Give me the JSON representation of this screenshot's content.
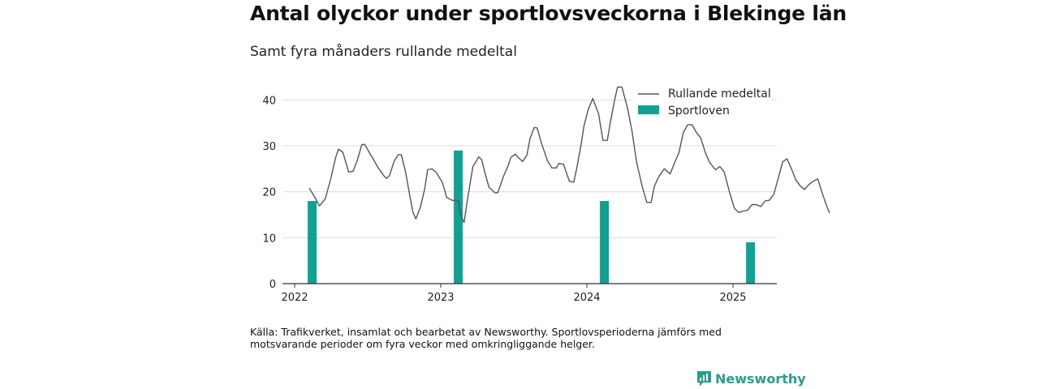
{
  "title": "Antal olyckor under sportlovsveckorna i Blekinge län",
  "subtitle": "Samt fyra månaders rullande medeltal",
  "source": "Källa: Trafikverket, insamlat och bearbetat av Newsworthy. Sportlovsperioderna jämförs med motsvarande perioder om fyra veckor med omkringliggande helger.",
  "brand": {
    "name": "Newsworthy",
    "icon": "bar-chart-speech-bubble-icon"
  },
  "colors": {
    "line": "#555555",
    "bar": "#0fa192",
    "grid": "#dddddd",
    "axis": "#333333",
    "brand": "#2a9d8f"
  },
  "chart_data": {
    "type": "bar+line",
    "title": "Antal olyckor under sportlovsveckorna i Blekinge län",
    "subtitle": "Samt fyra månaders rullande medeltal",
    "xlabel": "",
    "ylabel": "",
    "ylim": [
      0,
      45
    ],
    "yticks": [
      0,
      10,
      20,
      30,
      40
    ],
    "xticks": [
      "2022",
      "2023",
      "2024",
      "2025"
    ],
    "grid": true,
    "legend_position": "top-right",
    "series": [
      {
        "name": "Sportloven",
        "type": "bar",
        "points": [
          {
            "x": 2022.12,
            "y": 18
          },
          {
            "x": 2023.12,
            "y": 29
          },
          {
            "x": 2024.12,
            "y": 18
          },
          {
            "x": 2025.12,
            "y": 9
          }
        ]
      },
      {
        "name": "Rullande medeltal",
        "type": "line",
        "points": [
          [
            2022.1,
            20.8
          ],
          [
            2022.14,
            18.7
          ],
          [
            2022.17,
            16.9
          ],
          [
            2022.21,
            18.5
          ],
          [
            2022.25,
            23.2
          ],
          [
            2022.28,
            27.4
          ],
          [
            2022.3,
            29.3
          ],
          [
            2022.33,
            28.6
          ],
          [
            2022.37,
            24.3
          ],
          [
            2022.4,
            24.5
          ],
          [
            2022.43,
            27.0
          ],
          [
            2022.46,
            30.3
          ],
          [
            2022.48,
            30.3
          ],
          [
            2022.51,
            28.6
          ],
          [
            2022.54,
            27.0
          ],
          [
            2022.57,
            25.3
          ],
          [
            2022.61,
            23.5
          ],
          [
            2022.63,
            22.9
          ],
          [
            2022.65,
            23.6
          ],
          [
            2022.68,
            26.6
          ],
          [
            2022.71,
            28.1
          ],
          [
            2022.73,
            28.1
          ],
          [
            2022.76,
            24.2
          ],
          [
            2022.79,
            18.8
          ],
          [
            2022.81,
            15.5
          ],
          [
            2022.83,
            14.1
          ],
          [
            2022.86,
            16.6
          ],
          [
            2022.89,
            20.6
          ],
          [
            2022.91,
            24.8
          ],
          [
            2022.94,
            25.0
          ],
          [
            2022.97,
            24.2
          ],
          [
            2023.01,
            22.1
          ],
          [
            2023.03,
            20.0
          ],
          [
            2023.04,
            18.8
          ],
          [
            2023.08,
            18.1
          ],
          [
            2023.12,
            18.1
          ],
          [
            2023.14,
            14.6
          ],
          [
            2023.16,
            13.3
          ],
          [
            2023.18,
            17.8
          ],
          [
            2023.22,
            25.5
          ],
          [
            2023.26,
            27.6
          ],
          [
            2023.28,
            27.0
          ],
          [
            2023.3,
            24.4
          ],
          [
            2023.33,
            21.0
          ],
          [
            2023.37,
            19.8
          ],
          [
            2023.39,
            19.8
          ],
          [
            2023.43,
            23.4
          ],
          [
            2023.46,
            25.6
          ],
          [
            2023.48,
            27.5
          ],
          [
            2023.51,
            28.2
          ],
          [
            2023.53,
            27.5
          ],
          [
            2023.56,
            26.6
          ],
          [
            2023.59,
            28.0
          ],
          [
            2023.61,
            31.5
          ],
          [
            2023.64,
            34.0
          ],
          [
            2023.66,
            33.9
          ],
          [
            2023.69,
            30.5
          ],
          [
            2023.73,
            26.8
          ],
          [
            2023.76,
            25.2
          ],
          [
            2023.79,
            25.2
          ],
          [
            2023.81,
            26.2
          ],
          [
            2023.84,
            26.0
          ],
          [
            2023.88,
            22.3
          ],
          [
            2023.91,
            22.1
          ],
          [
            2023.93,
            25.0
          ],
          [
            2023.96,
            30.2
          ],
          [
            2023.98,
            34.3
          ],
          [
            2024.01,
            38.0
          ],
          [
            2024.04,
            40.3
          ],
          [
            2024.08,
            37.0
          ],
          [
            2024.11,
            31.2
          ],
          [
            2024.14,
            31.2
          ],
          [
            2024.16,
            35.0
          ],
          [
            2024.19,
            40.0
          ],
          [
            2024.21,
            42.8
          ],
          [
            2024.24,
            42.8
          ],
          [
            2024.28,
            38.0
          ],
          [
            2024.31,
            33.0
          ],
          [
            2024.34,
            26.5
          ],
          [
            2024.38,
            21.0
          ],
          [
            2024.41,
            17.7
          ],
          [
            2024.44,
            17.7
          ],
          [
            2024.46,
            21.0
          ],
          [
            2024.49,
            23.2
          ],
          [
            2024.53,
            25.0
          ],
          [
            2024.57,
            23.9
          ],
          [
            2024.6,
            26.3
          ],
          [
            2024.63,
            28.5
          ],
          [
            2024.66,
            32.9
          ],
          [
            2024.69,
            34.6
          ],
          [
            2024.72,
            34.6
          ],
          [
            2024.75,
            32.9
          ],
          [
            2024.78,
            31.7
          ],
          [
            2024.81,
            28.6
          ],
          [
            2024.84,
            26.4
          ],
          [
            2024.88,
            24.8
          ],
          [
            2024.91,
            25.5
          ],
          [
            2024.94,
            24.3
          ],
          [
            2024.98,
            19.5
          ],
          [
            2025.01,
            16.4
          ],
          [
            2025.04,
            15.5
          ],
          [
            2025.07,
            15.8
          ],
          [
            2025.1,
            16.0
          ],
          [
            2025.13,
            17.2
          ],
          [
            2025.16,
            17.2
          ],
          [
            2025.19,
            16.8
          ],
          [
            2025.22,
            18.0
          ],
          [
            2025.25,
            18.2
          ],
          [
            2025.28,
            19.5
          ],
          [
            2025.31,
            23.0
          ],
          [
            2025.34,
            26.5
          ],
          [
            2025.37,
            27.2
          ],
          [
            2025.4,
            25.0
          ],
          [
            2025.43,
            22.6
          ],
          [
            2025.46,
            21.3
          ],
          [
            2025.49,
            20.5
          ],
          [
            2025.52,
            21.6
          ],
          [
            2025.55,
            22.3
          ],
          [
            2025.58,
            22.8
          ],
          [
            2025.61,
            19.8
          ],
          [
            2025.64,
            17.0
          ],
          [
            2025.66,
            15.4
          ]
        ]
      }
    ]
  }
}
